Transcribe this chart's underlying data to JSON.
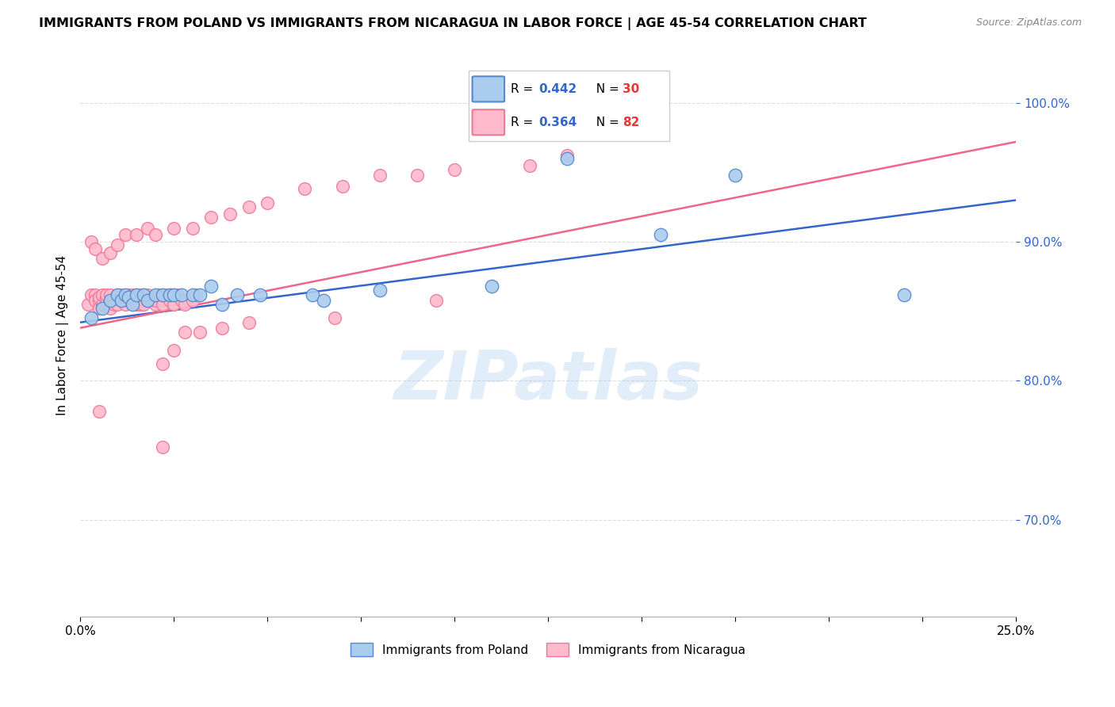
{
  "title": "IMMIGRANTS FROM POLAND VS IMMIGRANTS FROM NICARAGUA IN LABOR FORCE | AGE 45-54 CORRELATION CHART",
  "source": "Source: ZipAtlas.com",
  "ylabel": "In Labor Force | Age 45-54",
  "x_min": 0.0,
  "x_max": 0.25,
  "y_min": 0.63,
  "y_max": 1.035,
  "poland_color": "#5588CC",
  "poland_fill": "#AACCEE",
  "nicaragua_color": "#EE7799",
  "nicaragua_fill": "#FFBBCC",
  "trendline_poland_color": "#3366CC",
  "trendline_nicaragua_color": "#EE6688",
  "poland_R": 0.442,
  "poland_N": 30,
  "nicaragua_R": 0.364,
  "nicaragua_N": 82,
  "legend_R_color": "#3366CC",
  "legend_N_color": "#EE3333",
  "yticks": [
    0.7,
    0.8,
    0.9,
    1.0
  ],
  "ytick_labels": [
    "70.0%",
    "80.0%",
    "90.0%",
    "100.0%"
  ],
  "xtick_left_label": "0.0%",
  "xtick_right_label": "25.0%",
  "xticks_minor": [
    0.0,
    0.025,
    0.05,
    0.075,
    0.1,
    0.125,
    0.15,
    0.175,
    0.2,
    0.225,
    0.25
  ],
  "poland_x": [
    0.003,
    0.006,
    0.008,
    0.01,
    0.011,
    0.012,
    0.013,
    0.014,
    0.015,
    0.017,
    0.018,
    0.02,
    0.022,
    0.024,
    0.025,
    0.027,
    0.03,
    0.032,
    0.035,
    0.038,
    0.042,
    0.048,
    0.062,
    0.065,
    0.08,
    0.11,
    0.13,
    0.155,
    0.175,
    0.22
  ],
  "poland_y": [
    0.845,
    0.852,
    0.858,
    0.862,
    0.858,
    0.862,
    0.86,
    0.855,
    0.862,
    0.862,
    0.858,
    0.862,
    0.862,
    0.862,
    0.862,
    0.862,
    0.862,
    0.862,
    0.868,
    0.855,
    0.862,
    0.862,
    0.862,
    0.858,
    0.865,
    0.868,
    0.96,
    0.905,
    0.948,
    0.862
  ],
  "trendline_poland_x0": 0.0,
  "trendline_poland_y0": 0.842,
  "trendline_poland_x1": 0.25,
  "trendline_poland_y1": 0.93,
  "trendline_nicaragua_x0": 0.0,
  "trendline_nicaragua_y0": 0.838,
  "trendline_nicaragua_x1": 0.25,
  "trendline_nicaragua_y1": 0.972,
  "watermark_text": "ZIPatlas",
  "watermark_color": "#AACCEE",
  "watermark_alpha": 0.35,
  "grid_color": "#DDDDDD",
  "nic_x": [
    0.002,
    0.003,
    0.004,
    0.004,
    0.005,
    0.005,
    0.005,
    0.006,
    0.006,
    0.007,
    0.007,
    0.007,
    0.008,
    0.008,
    0.008,
    0.009,
    0.009,
    0.01,
    0.01,
    0.011,
    0.011,
    0.012,
    0.012,
    0.013,
    0.013,
    0.014,
    0.014,
    0.015,
    0.015,
    0.016,
    0.016,
    0.016,
    0.017,
    0.017,
    0.018,
    0.018,
    0.019,
    0.02,
    0.02,
    0.021,
    0.022,
    0.022,
    0.023,
    0.024,
    0.025,
    0.026,
    0.027,
    0.028,
    0.03,
    0.031,
    0.003,
    0.004,
    0.006,
    0.008,
    0.01,
    0.012,
    0.015,
    0.018,
    0.02,
    0.025,
    0.03,
    0.035,
    0.04,
    0.045,
    0.05,
    0.06,
    0.07,
    0.08,
    0.09,
    0.1,
    0.12,
    0.13,
    0.032,
    0.028,
    0.025,
    0.022,
    0.038,
    0.045,
    0.068,
    0.095,
    0.005,
    0.022
  ],
  "nic_y": [
    0.855,
    0.862,
    0.862,
    0.858,
    0.858,
    0.852,
    0.86,
    0.855,
    0.862,
    0.86,
    0.858,
    0.862,
    0.852,
    0.858,
    0.862,
    0.858,
    0.855,
    0.855,
    0.862,
    0.858,
    0.862,
    0.858,
    0.855,
    0.858,
    0.862,
    0.856,
    0.862,
    0.855,
    0.862,
    0.858,
    0.855,
    0.862,
    0.858,
    0.855,
    0.858,
    0.862,
    0.858,
    0.855,
    0.858,
    0.862,
    0.858,
    0.855,
    0.862,
    0.858,
    0.855,
    0.862,
    0.858,
    0.855,
    0.858,
    0.862,
    0.9,
    0.895,
    0.888,
    0.892,
    0.898,
    0.905,
    0.905,
    0.91,
    0.905,
    0.91,
    0.91,
    0.918,
    0.92,
    0.925,
    0.928,
    0.938,
    0.94,
    0.948,
    0.948,
    0.952,
    0.955,
    0.962,
    0.835,
    0.835,
    0.822,
    0.812,
    0.838,
    0.842,
    0.845,
    0.858,
    0.778,
    0.752
  ]
}
